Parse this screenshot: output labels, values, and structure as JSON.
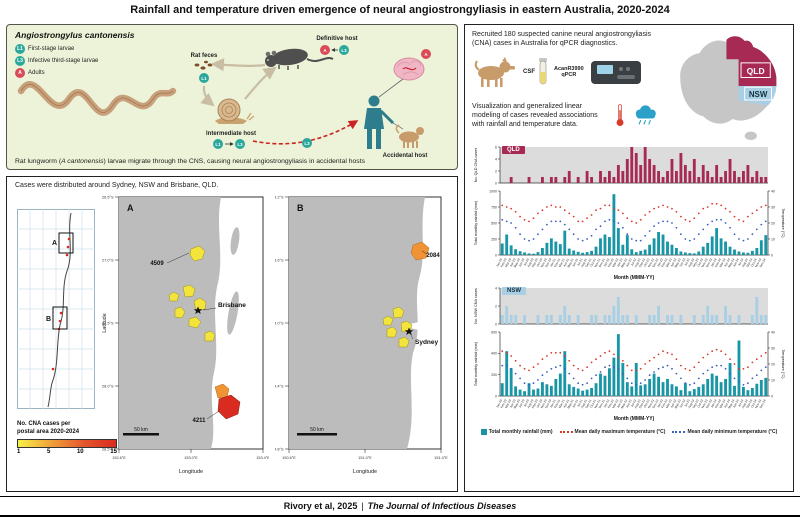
{
  "title": "Rainfall and temperature driven emergence of neural angiostrongyliasis in eastern Australia, 2020-2024",
  "lifecycle": {
    "name": "Angiostrongylus cantonensis",
    "legend": [
      {
        "badge": "L1",
        "label": "First-stage larvae"
      },
      {
        "badge": "L3",
        "label": "Infective third-stage larvae"
      },
      {
        "badge": "A",
        "label": "Adults"
      }
    ],
    "badges": {
      "l1": "L1",
      "l3": "L3",
      "adult": "A"
    },
    "rat_feces_label": "Rat feces",
    "intermediate_host_label": "Intermediate host",
    "definitive_host_label": "Definitive host",
    "accidental_host_label": "Accidental host",
    "caption_prefix": "Rat lungworm (",
    "caption_italic": "A cantonensis",
    "caption_suffix": ") larvae migrate through the CNS, causing neural angiostrongyliasis in accidental hosts"
  },
  "maps": {
    "caption": "Cases were distributed around Sydney, NSW and Brisbane, QLD.",
    "locator_a": "A",
    "locator_b": "B",
    "legend_title_1": "No. CNA cases per",
    "legend_title_2": "postal area 2020-2024",
    "legend_ticks": [
      "1",
      "5",
      "10",
      "15"
    ],
    "panel_a": {
      "label": "A",
      "city": "Brisbane",
      "postcode_north": "4509",
      "postcode_south": "4211",
      "scale": "50 km",
      "ylabel": "Latitude",
      "xlabel": "Longitude",
      "lat_ticks": [
        "26.5°S",
        "27.0°S",
        "27.5°S",
        "28.0°S",
        "28.5°S"
      ],
      "lon_ticks": [
        "152.6°E",
        "153.0°E",
        "153.4°E"
      ]
    },
    "panel_b": {
      "label": "B",
      "city": "Sydney",
      "postcode": "2084",
      "scale": "50 km",
      "xlabel": "Longitude",
      "lat_ticks": [
        "33.2°S",
        "33.6°S",
        "34.0°S",
        "34.4°S",
        "34.8°S"
      ],
      "lon_ticks": [
        "150.6°E",
        "151.0°E",
        "151.4°E"
      ]
    }
  },
  "study": {
    "recruit_text": "Recruited 180 suspected canine neural angiostrongyliasis (CNA) cases in Australia for qPCR diagnostics.",
    "csf_label": "CSF",
    "qpcr_line1": "AcanR3990",
    "qpcr_line2": "qPCR",
    "modeling_text": "Visualization and generalized linear modeling of cases revealed associations with rainfall and temperature data.",
    "aus_qld": "QLD",
    "aus_nsw": "NSW"
  },
  "charts": {
    "qld_label": "QLD",
    "nsw_label": "NSW",
    "legend": [
      {
        "label": "Total monthly rainfall (mm)",
        "color": "#1896a6",
        "marker": "square"
      },
      {
        "label": "Mean daily maximum temperature (°C)",
        "color": "#d93a2b",
        "marker": "dots"
      },
      {
        "label": "Mean daily minimum temperature (°C)",
        "color": "#3a5fc0",
        "marker": "dots"
      }
    ]
  },
  "colors": {
    "qld": "#a62a54",
    "nsw": "#a9cfe4",
    "rain": "#1896a6",
    "tmax": "#d93a2b",
    "tmin": "#3a5fc0"
  },
  "months": [
    "Jan-20",
    "Feb-20",
    "Mar-20",
    "Apr-20",
    "May-20",
    "Jun-20",
    "Jul-20",
    "Aug-20",
    "Sep-20",
    "Oct-20",
    "Nov-20",
    "Dec-20",
    "Jan-21",
    "Feb-21",
    "Mar-21",
    "Apr-21",
    "May-21",
    "Jun-21",
    "Jul-21",
    "Aug-21",
    "Sep-21",
    "Oct-21",
    "Nov-21",
    "Dec-21",
    "Jan-22",
    "Feb-22",
    "Mar-22",
    "Apr-22",
    "May-22",
    "Jun-22",
    "Jul-22",
    "Aug-22",
    "Sep-22",
    "Oct-22",
    "Nov-22",
    "Dec-22",
    "Jan-23",
    "Feb-23",
    "Mar-23",
    "Apr-23",
    "May-23",
    "Jun-23",
    "Jul-23",
    "Aug-23",
    "Sep-23",
    "Oct-23",
    "Nov-23",
    "Dec-23",
    "Jan-24",
    "Feb-24",
    "Mar-24",
    "Apr-24",
    "May-24",
    "Jun-24",
    "Jul-24",
    "Aug-24",
    "Sep-24",
    "Oct-24",
    "Nov-24",
    "Dec-24"
  ],
  "chart_data": [
    {
      "id": "qld_cases",
      "type": "bar",
      "ylabel": "No. QLD CNA cases",
      "ylim": [
        0,
        6
      ],
      "yticks": [
        0,
        2,
        4,
        6
      ],
      "plot_bg": "#dcdcdc",
      "ml": 28,
      "mr": 18,
      "mt": 3,
      "mb": 3,
      "show_xlabels": false,
      "series": [
        {
          "name": "QLD CNA cases",
          "type": "bar",
          "color": "#a62a54",
          "values": [
            0,
            0,
            1,
            0,
            0,
            0,
            1,
            0,
            0,
            1,
            0,
            1,
            1,
            0,
            1,
            2,
            0,
            1,
            0,
            2,
            1,
            0,
            2,
            1,
            2,
            1,
            3,
            2,
            4,
            6,
            5,
            3,
            6,
            4,
            3,
            2,
            1,
            2,
            4,
            2,
            5,
            3,
            2,
            4,
            1,
            3,
            2,
            1,
            3,
            1,
            2,
            4,
            2,
            1,
            2,
            3,
            1,
            2,
            1,
            1
          ]
        }
      ]
    },
    {
      "id": "qld_climate",
      "type": "bar+scatter",
      "ylabel": "Total monthly rainfall (mm)",
      "ylabel_right": "Temperature (°C)",
      "xlabel": "Month (MMM-YY)",
      "ylim": [
        0,
        1000
      ],
      "yticks": [
        0,
        250,
        500,
        750,
        1000
      ],
      "ylim_right": [
        0,
        40
      ],
      "yticks_right": [
        0,
        10,
        20,
        30,
        40
      ],
      "ml": 28,
      "mr": 18,
      "mt": 3,
      "mb": 27,
      "show_xlabels": true,
      "series": [
        {
          "name": "Total monthly rainfall (mm)",
          "type": "bar",
          "color": "#1896a6",
          "values": [
            180,
            320,
            150,
            90,
            60,
            40,
            25,
            20,
            45,
            110,
            190,
            260,
            210,
            170,
            380,
            100,
            70,
            50,
            35,
            45,
            65,
            130,
            260,
            320,
            280,
            950,
            420,
            160,
            310,
            90,
            45,
            65,
            85,
            160,
            260,
            360,
            320,
            210,
            160,
            110,
            55,
            40,
            30,
            25,
            55,
            130,
            190,
            290,
            420,
            260,
            210,
            130,
            85,
            55,
            40,
            35,
            65,
            110,
            230,
            310
          ]
        },
        {
          "name": "Mean daily maximum temperature (°C)",
          "type": "scatter",
          "color": "#d93a2b",
          "values": [
            31,
            30,
            29,
            27,
            24,
            22,
            21,
            23,
            26,
            28,
            30,
            31,
            30,
            30,
            28,
            26,
            24,
            21,
            21,
            23,
            25,
            28,
            29,
            31,
            31,
            29,
            28,
            26,
            23,
            21,
            20,
            22,
            25,
            27,
            29,
            30,
            31,
            30,
            29,
            27,
            24,
            22,
            21,
            23,
            26,
            29,
            30,
            32,
            32,
            31,
            29,
            27,
            24,
            22,
            21,
            24,
            26,
            28,
            30,
            31
          ]
        },
        {
          "name": "Mean daily minimum temperature (°C)",
          "type": "scatter",
          "color": "#3a5fc0",
          "values": [
            22,
            21,
            20,
            17,
            13,
            10,
            9,
            10,
            13,
            16,
            19,
            21,
            21,
            21,
            19,
            16,
            13,
            10,
            9,
            10,
            12,
            16,
            18,
            21,
            22,
            21,
            20,
            17,
            13,
            10,
            9,
            9,
            12,
            15,
            18,
            20,
            21,
            21,
            20,
            17,
            13,
            10,
            9,
            10,
            13,
            16,
            19,
            21,
            22,
            22,
            20,
            17,
            13,
            10,
            9,
            10,
            13,
            16,
            19,
            21
          ]
        }
      ]
    },
    {
      "id": "nsw_cases",
      "type": "bar",
      "ylabel": "No. NSW CNA cases",
      "ylim": [
        0,
        4
      ],
      "yticks": [
        0,
        2,
        4
      ],
      "plot_bg": "#dcdcdc",
      "ml": 28,
      "mr": 18,
      "mt": 3,
      "mb": 3,
      "show_xlabels": false,
      "series": [
        {
          "name": "NSW CNA cases",
          "type": "bar",
          "color": "#a9cfe4",
          "values": [
            1,
            2,
            1,
            1,
            0,
            1,
            0,
            0,
            1,
            0,
            1,
            1,
            0,
            1,
            2,
            1,
            0,
            1,
            0,
            0,
            1,
            1,
            0,
            1,
            1,
            2,
            3,
            1,
            1,
            0,
            1,
            0,
            0,
            1,
            1,
            2,
            0,
            1,
            1,
            0,
            1,
            0,
            0,
            1,
            0,
            1,
            2,
            1,
            1,
            0,
            2,
            1,
            0,
            1,
            0,
            0,
            1,
            3,
            1,
            1
          ]
        }
      ]
    },
    {
      "id": "nsw_climate",
      "type": "bar+scatter",
      "ylabel": "Total monthly rainfall (mm)",
      "ylabel_right": "Temperature (°C)",
      "xlabel": "Month (MMM-YY)",
      "ylim": [
        0,
        600
      ],
      "yticks": [
        0,
        200,
        400,
        600
      ],
      "ylim_right": [
        0,
        40
      ],
      "yticks_right": [
        0,
        10,
        20,
        30,
        40
      ],
      "ml": 28,
      "mr": 18,
      "mt": 3,
      "mb": 27,
      "show_xlabels": true,
      "series": [
        {
          "name": "Total monthly rainfall (mm)",
          "type": "bar",
          "color": "#1896a6",
          "values": [
            120,
            420,
            260,
            90,
            60,
            45,
            120,
            60,
            70,
            130,
            110,
            95,
            160,
            210,
            420,
            110,
            85,
            70,
            50,
            60,
            75,
            120,
            210,
            190,
            260,
            360,
            580,
            310,
            130,
            90,
            310,
            100,
            110,
            160,
            210,
            180,
            130,
            160,
            110,
            90,
            55,
            120,
            45,
            65,
            85,
            110,
            160,
            210,
            190,
            130,
            160,
            310,
            95,
            520,
            85,
            55,
            75,
            115,
            150,
            170
          ]
        },
        {
          "name": "Mean daily maximum temperature (°C)",
          "type": "scatter",
          "color": "#d93a2b",
          "values": [
            28,
            27,
            25,
            22,
            19,
            17,
            16,
            18,
            20,
            23,
            25,
            27,
            27,
            27,
            25,
            22,
            19,
            17,
            16,
            18,
            21,
            23,
            25,
            27,
            28,
            26,
            24,
            22,
            19,
            16,
            16,
            17,
            20,
            22,
            24,
            26,
            28,
            27,
            26,
            23,
            19,
            17,
            16,
            18,
            21,
            24,
            26,
            28,
            29,
            28,
            26,
            23,
            20,
            17,
            17,
            18,
            21,
            23,
            25,
            27
          ]
        },
        {
          "name": "Mean daily minimum temperature (°C)",
          "type": "scatter",
          "color": "#3a5fc0",
          "values": [
            19,
            19,
            17,
            14,
            11,
            8,
            7,
            8,
            10,
            13,
            15,
            17,
            18,
            19,
            17,
            14,
            11,
            8,
            7,
            8,
            11,
            13,
            15,
            18,
            19,
            18,
            17,
            14,
            11,
            8,
            7,
            8,
            10,
            13,
            15,
            17,
            18,
            19,
            17,
            14,
            11,
            8,
            7,
            8,
            11,
            14,
            16,
            18,
            19,
            19,
            17,
            14,
            11,
            9,
            7,
            8,
            11,
            13,
            16,
            18
          ]
        }
      ]
    }
  ],
  "footer": {
    "authors": "Rivory et al, 2025",
    "sep": "|",
    "journal": "The Journal of Infectious Diseases"
  }
}
